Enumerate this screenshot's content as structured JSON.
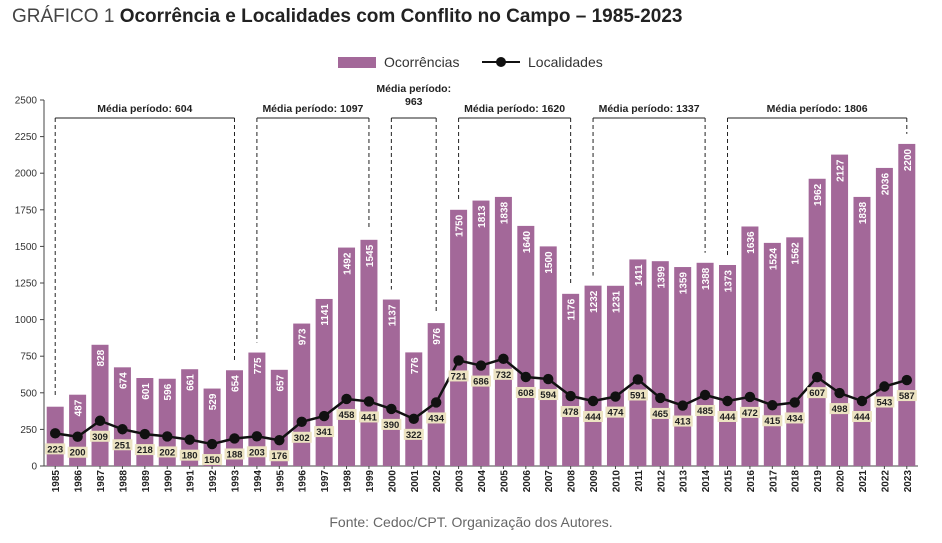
{
  "title_prefix": "GRÁFICO 1",
  "title": "Ocorrência e Localidades com Conflito no Campo – 1985-2023",
  "source": "Fonte: Cedoc/CPT. Organização dos Autores.",
  "colors": {
    "bar": "#a36899",
    "line": "#111111",
    "label_box": "#ece3c2"
  },
  "chart_data": {
    "type": "bar",
    "categories": [
      "1985",
      "1986",
      "1987",
      "1988",
      "1989",
      "1990",
      "1991",
      "1992",
      "1993",
      "1994",
      "1995",
      "1996",
      "1997",
      "1998",
      "1999",
      "2000",
      "2001",
      "2002",
      "2003",
      "2004",
      "2005",
      "2006",
      "2007",
      "2008",
      "2009",
      "2010",
      "2011",
      "2012",
      "2013",
      "2014",
      "2015",
      "2016",
      "2017",
      "2018",
      "2019",
      "2020",
      "2021",
      "2022",
      "2023"
    ],
    "series": [
      {
        "name": "Ocorrências",
        "kind": "bar",
        "values": [
          405,
          487,
          828,
          674,
          601,
          596,
          661,
          529,
          654,
          775,
          657,
          973,
          1141,
          1492,
          1545,
          1137,
          776,
          976,
          1750,
          1813,
          1838,
          1640,
          1500,
          1176,
          1232,
          1231,
          1411,
          1399,
          1359,
          1388,
          1373,
          1636,
          1524,
          1562,
          1962,
          2127,
          1838,
          2036,
          2200
        ],
        "labels": [
          "",
          "487",
          "828",
          "674",
          "601",
          "596",
          "661",
          "529",
          "654",
          "775",
          "657",
          "973",
          "1141",
          "1492",
          "1545",
          "1137",
          "776",
          "976",
          "1750",
          "1813",
          "1838",
          "1640",
          "1500",
          "1176",
          "1232",
          "1231",
          "1411",
          "1399",
          "1359",
          "1388",
          "1373",
          "1636",
          "1524",
          "1562",
          "1962",
          "2127",
          "1838",
          "2036",
          "2200"
        ]
      },
      {
        "name": "Localidades",
        "kind": "line",
        "values": [
          223,
          200,
          309,
          251,
          218,
          202,
          180,
          150,
          188,
          203,
          176,
          302,
          341,
          458,
          441,
          390,
          322,
          434,
          721,
          686,
          732,
          608,
          594,
          478,
          444,
          474,
          591,
          465,
          413,
          485,
          444,
          472,
          415,
          434,
          607,
          498,
          444,
          543,
          587
        ]
      }
    ],
    "ylim": [
      0,
      2500
    ],
    "yticks": [
      0,
      250,
      500,
      750,
      1000,
      1250,
      1500,
      1750,
      2000,
      2250,
      2500
    ],
    "grid": false,
    "legend_position": "top-center",
    "annotations": [
      {
        "label": "Média período: 604",
        "from": "1985",
        "to": "1993"
      },
      {
        "label": "Média período: 1097",
        "from": "1994",
        "to": "1999"
      },
      {
        "label": "Média período:",
        "label_line2": "963",
        "from": "2000",
        "to": "2002"
      },
      {
        "label": "Média período: 1620",
        "from": "2003",
        "to": "2008"
      },
      {
        "label": "Média período: 1337",
        "from": "2009",
        "to": "2014"
      },
      {
        "label": "Média período: 1806",
        "from": "2015",
        "to": "2023"
      }
    ]
  }
}
